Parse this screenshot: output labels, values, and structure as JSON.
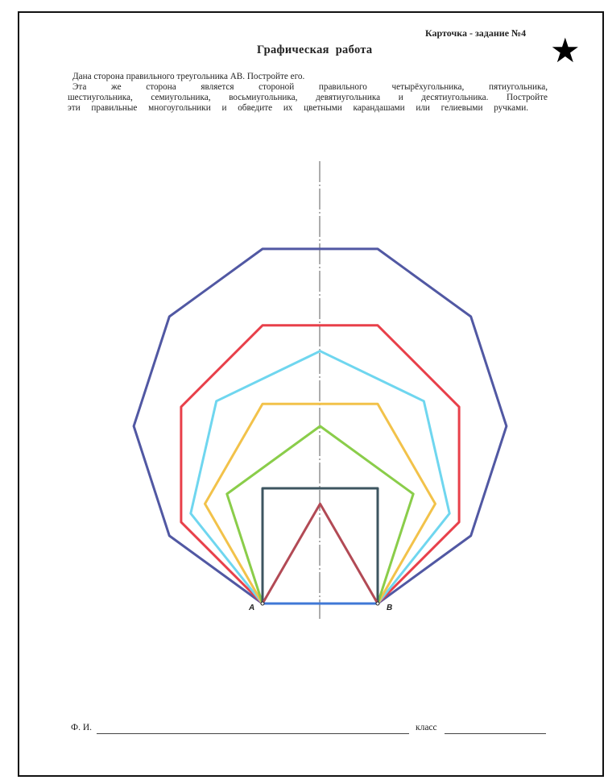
{
  "header": {
    "card_label": "Карточка - задание №4",
    "title": "Графическая работа"
  },
  "badge": {
    "icon": "star-icon",
    "glyph": "★",
    "color": "#000000"
  },
  "instructions": {
    "line1": "Дана сторона правильного треугольника АВ. Постройте его.",
    "line2": "Эта же сторона является стороной правильного четырёхугольника, пятиугольника,",
    "line3": "шестиугольника, семиугольника, восьмиугольника, девятиугольника и десятиугольника. Постройте",
    "line4": "эти правильные многоугольники и обведите их цветными карандашами или гелиевыми ручками."
  },
  "drawing": {
    "point_labels": {
      "a": "A",
      "b": "B"
    },
    "polygons": [
      {
        "sides": 3,
        "color": "#b24a55"
      },
      {
        "sides": 4,
        "color": "#3d5560"
      },
      {
        "sides": 5,
        "color": "#8acd4a"
      },
      {
        "sides": 6,
        "color": "#f2c24a"
      },
      {
        "sides": 7,
        "color": "#6fd6ef"
      },
      {
        "sides": 8,
        "color": "#e8404a"
      },
      {
        "sides": 10,
        "color": "#5158a3"
      }
    ],
    "base_color": "#3f78d6"
  },
  "footer": {
    "name_label": "Ф. И.",
    "class_label": "класс"
  }
}
